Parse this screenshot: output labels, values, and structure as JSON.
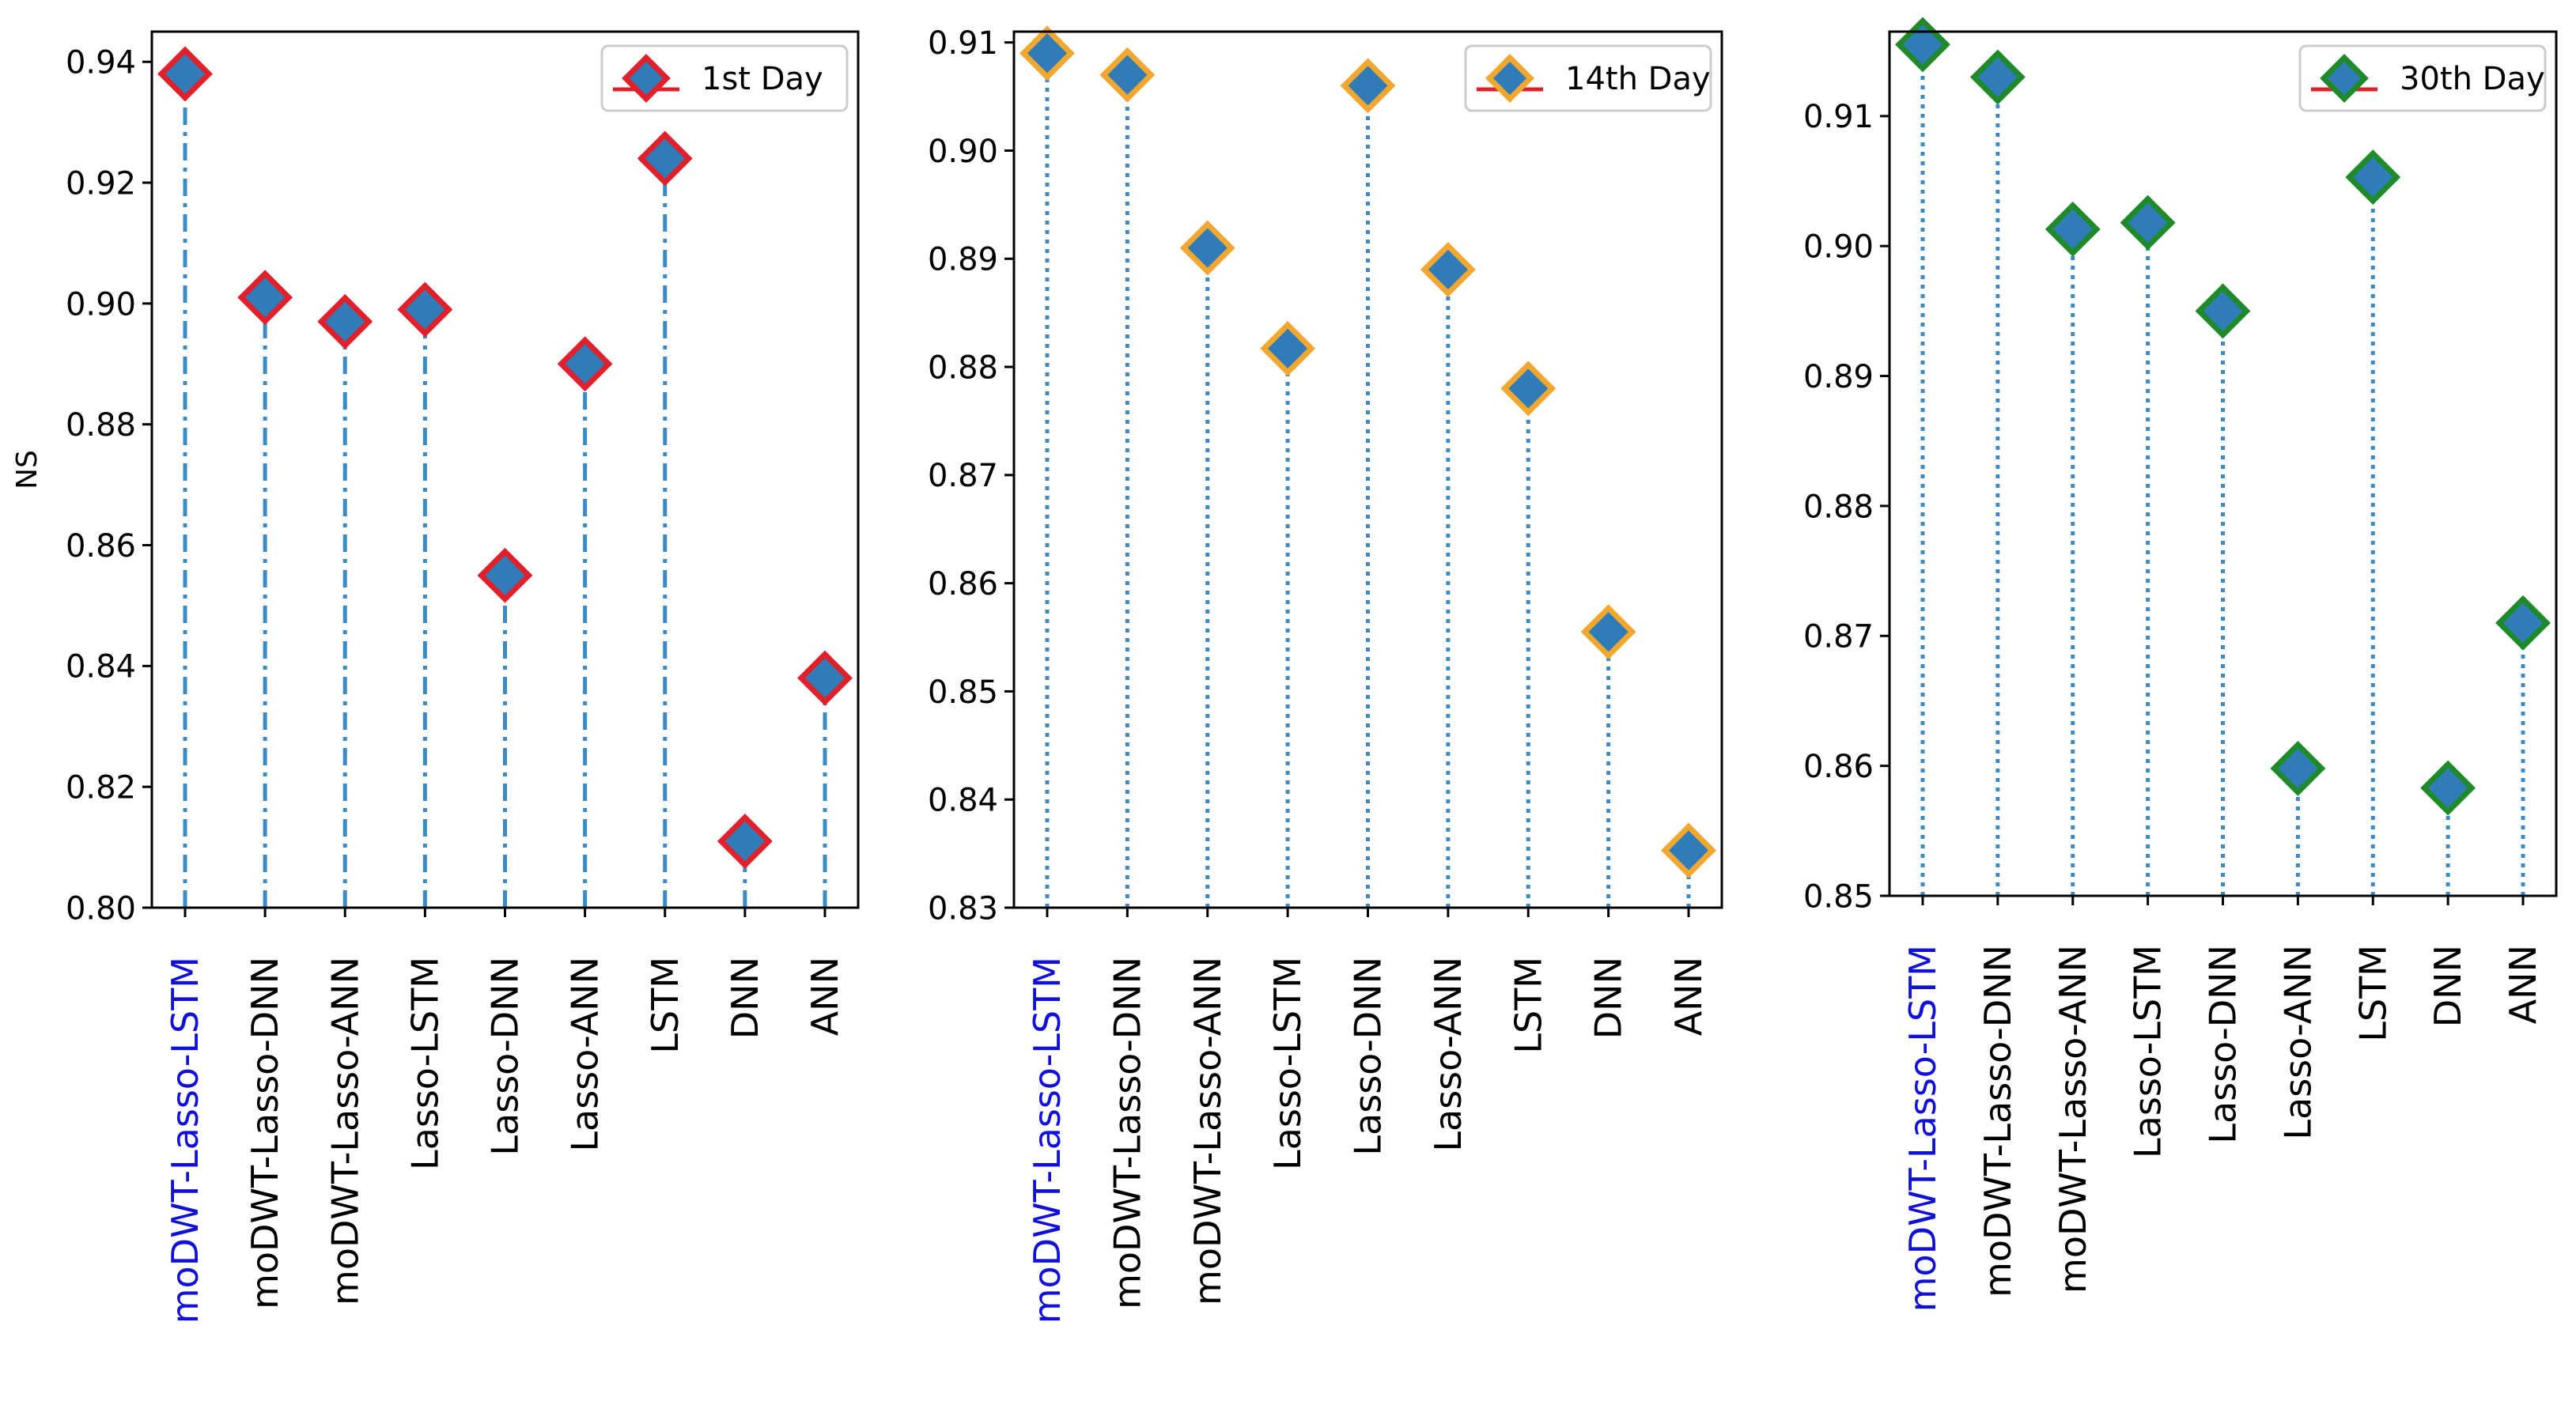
{
  "chart_data": [
    {
      "type": "stem",
      "title": "",
      "xlabel": "",
      "ylabel": "NS",
      "categories": [
        "moDWT-Lasso-LSTM",
        "moDWT-Lasso-DNN",
        "moDWT-Lasso-ANN",
        "Lasso-LSTM",
        "Lasso-DNN",
        "Lasso-ANN",
        "LSTM",
        "DNN",
        "ANN"
      ],
      "highlight_category": "moDWT-Lasso-LSTM",
      "ylim": [
        0.8,
        0.945
      ],
      "yticks": [
        "0.80",
        "0.82",
        "0.84",
        "0.86",
        "0.88",
        "0.90",
        "0.92",
        "0.94"
      ],
      "series": [
        {
          "name": "1st Day",
          "values": [
            0.938,
            0.901,
            0.897,
            0.899,
            0.855,
            0.89,
            0.924,
            0.811,
            0.838
          ]
        }
      ],
      "legend": {
        "label": "1st Day",
        "position": "top-right"
      },
      "stem_style": "dashdot",
      "marker": "diamond",
      "colors": {
        "stem": "#3c8ac4",
        "marker_fill": "#2f7cb8",
        "marker_edge": "#e0202a",
        "legend_line": "#e0202a"
      }
    },
    {
      "type": "stem",
      "title": "",
      "xlabel": "",
      "ylabel": "",
      "categories": [
        "moDWT-Lasso-LSTM",
        "moDWT-Lasso-DNN",
        "moDWT-Lasso-ANN",
        "Lasso-LSTM",
        "Lasso-DNN",
        "Lasso-ANN",
        "LSTM",
        "DNN",
        "ANN"
      ],
      "highlight_category": "moDWT-Lasso-LSTM",
      "ylim": [
        0.83,
        0.911
      ],
      "yticks": [
        "0.83",
        "0.84",
        "0.85",
        "0.86",
        "0.87",
        "0.88",
        "0.89",
        "0.90",
        "0.91"
      ],
      "series": [
        {
          "name": "14th Day",
          "values": [
            0.909,
            0.907,
            0.891,
            0.8817,
            0.906,
            0.889,
            0.878,
            0.8555,
            0.8353
          ]
        }
      ],
      "legend": {
        "label": "14th Day",
        "position": "top-right"
      },
      "stem_style": "dotted",
      "marker": "diamond",
      "colors": {
        "stem": "#3c8ac4",
        "marker_fill": "#2f7cb8",
        "marker_edge": "#f2a830",
        "legend_line": "#e0202a"
      }
    },
    {
      "type": "stem",
      "title": "",
      "xlabel": "",
      "ylabel": "",
      "categories": [
        "moDWT-Lasso-LSTM",
        "moDWT-Lasso-DNN",
        "moDWT-Lasso-ANN",
        "Lasso-LSTM",
        "Lasso-DNN",
        "Lasso-ANN",
        "LSTM",
        "DNN",
        "ANN"
      ],
      "highlight_category": "moDWT-Lasso-LSTM",
      "ylim": [
        0.85,
        0.9165
      ],
      "yticks": [
        "0.85",
        "0.86",
        "0.87",
        "0.88",
        "0.89",
        "0.90",
        "0.91"
      ],
      "series": [
        {
          "name": "30th Day",
          "values": [
            0.9155,
            0.913,
            0.9013,
            0.9018,
            0.895,
            0.8598,
            0.9053,
            0.8583,
            0.871
          ]
        }
      ],
      "legend": {
        "label": "30th Day",
        "position": "top-right"
      },
      "stem_style": "dotted",
      "marker": "diamond",
      "colors": {
        "stem": "#3c8ac4",
        "marker_fill": "#2f7cb8",
        "marker_edge": "#1f8a2a",
        "legend_line": "#e0202a"
      }
    }
  ]
}
